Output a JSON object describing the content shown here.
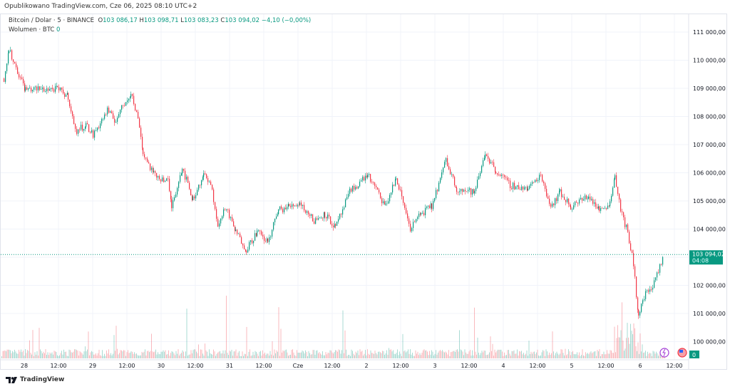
{
  "header": {
    "published": "Opublikowano TradingView.com, Cze 06, 2025 08:10 UTC+2"
  },
  "legend": {
    "symbol": "Bitcoin / Dolar · 5 · BINANCE",
    "o_label": "O",
    "o": "103 086,17",
    "h_label": "H",
    "h": "103 098,71",
    "l_label": "L",
    "l": "103 083,23",
    "c_label": "C",
    "c": "103 094,02",
    "change": "−4,10 (−0,00%)",
    "volume_label": "Wolumen · BTC",
    "volume": "0"
  },
  "price_tag": {
    "price": "103 094,02",
    "countdown": "04:08"
  },
  "volume_tag": "0",
  "footer": {
    "brand": "TradingView"
  },
  "colors": {
    "up": "#089981",
    "down": "#f23645",
    "tag": "#089981"
  },
  "chart_data": {
    "type": "candlestick",
    "title": "Bitcoin / Dolar · 5 · BINANCE",
    "ylim": [
      99500,
      111500
    ],
    "y_ticks": [
      111000,
      110000,
      109000,
      108000,
      107000,
      106000,
      105000,
      104000,
      103000,
      102000,
      101000,
      100000
    ],
    "y_tick_labels": [
      "111 000,00",
      "110 000,00",
      "109 000,00",
      "108 000,00",
      "107 000,00",
      "106 000,00",
      "105 000,00",
      "104 000,00",
      "",
      "102 000,00",
      "101 000,00",
      "100 000,00"
    ],
    "x_tick_labels": [
      "28",
      "12:00",
      "29",
      "12:00",
      "30",
      "12:00",
      "31",
      "12:00",
      "Cze",
      "12:00",
      "2",
      "12:00",
      "3",
      "12:00",
      "4",
      "12:00",
      "5",
      "12:00",
      "6",
      "12:00"
    ],
    "x_unit": "hours since 28 00:00",
    "last_price": 103094.02,
    "price_path": [
      [
        -7.25,
        109350
      ],
      [
        -5.5,
        110370
      ],
      [
        -3,
        109730
      ],
      [
        0.25,
        108970
      ],
      [
        11.5,
        108970
      ],
      [
        15.25,
        108720
      ],
      [
        17.75,
        107460
      ],
      [
        21.5,
        107710
      ],
      [
        24,
        107330
      ],
      [
        29,
        108220
      ],
      [
        31.5,
        107840
      ],
      [
        37.25,
        108850
      ],
      [
        40.25,
        107710
      ],
      [
        41.5,
        106700
      ],
      [
        45.25,
        105940
      ],
      [
        50.25,
        105690
      ],
      [
        51.5,
        104800
      ],
      [
        55.25,
        106190
      ],
      [
        59,
        105050
      ],
      [
        62.75,
        105940
      ],
      [
        65.75,
        105430
      ],
      [
        67.75,
        104040
      ],
      [
        70.25,
        104800
      ],
      [
        74,
        103910
      ],
      [
        77.75,
        103280
      ],
      [
        81.5,
        103910
      ],
      [
        85.25,
        103530
      ],
      [
        89,
        104670
      ],
      [
        92.75,
        104800
      ],
      [
        96.5,
        104930
      ],
      [
        101.5,
        104290
      ],
      [
        105.25,
        104550
      ],
      [
        109,
        104040
      ],
      [
        114,
        105310
      ],
      [
        120.25,
        105940
      ],
      [
        126.5,
        104800
      ],
      [
        130.25,
        105810
      ],
      [
        135.25,
        104040
      ],
      [
        139,
        104550
      ],
      [
        142.75,
        104800
      ],
      [
        147.75,
        106450
      ],
      [
        151.5,
        105430
      ],
      [
        157.75,
        105300
      ],
      [
        161.5,
        106700
      ],
      [
        165.25,
        106070
      ],
      [
        170.25,
        105560
      ],
      [
        176.5,
        105430
      ],
      [
        181,
        105940
      ],
      [
        184.5,
        104800
      ],
      [
        187.75,
        105300
      ],
      [
        191.5,
        104800
      ],
      [
        197.75,
        105180
      ],
      [
        201.5,
        104670
      ],
      [
        205.25,
        104930
      ],
      [
        207,
        105940
      ],
      [
        209,
        104670
      ],
      [
        211,
        104040
      ],
      [
        213.5,
        102780
      ],
      [
        215.25,
        100880
      ],
      [
        217.75,
        101770
      ],
      [
        220.25,
        101900
      ],
      [
        224.25,
        103094
      ]
    ]
  }
}
